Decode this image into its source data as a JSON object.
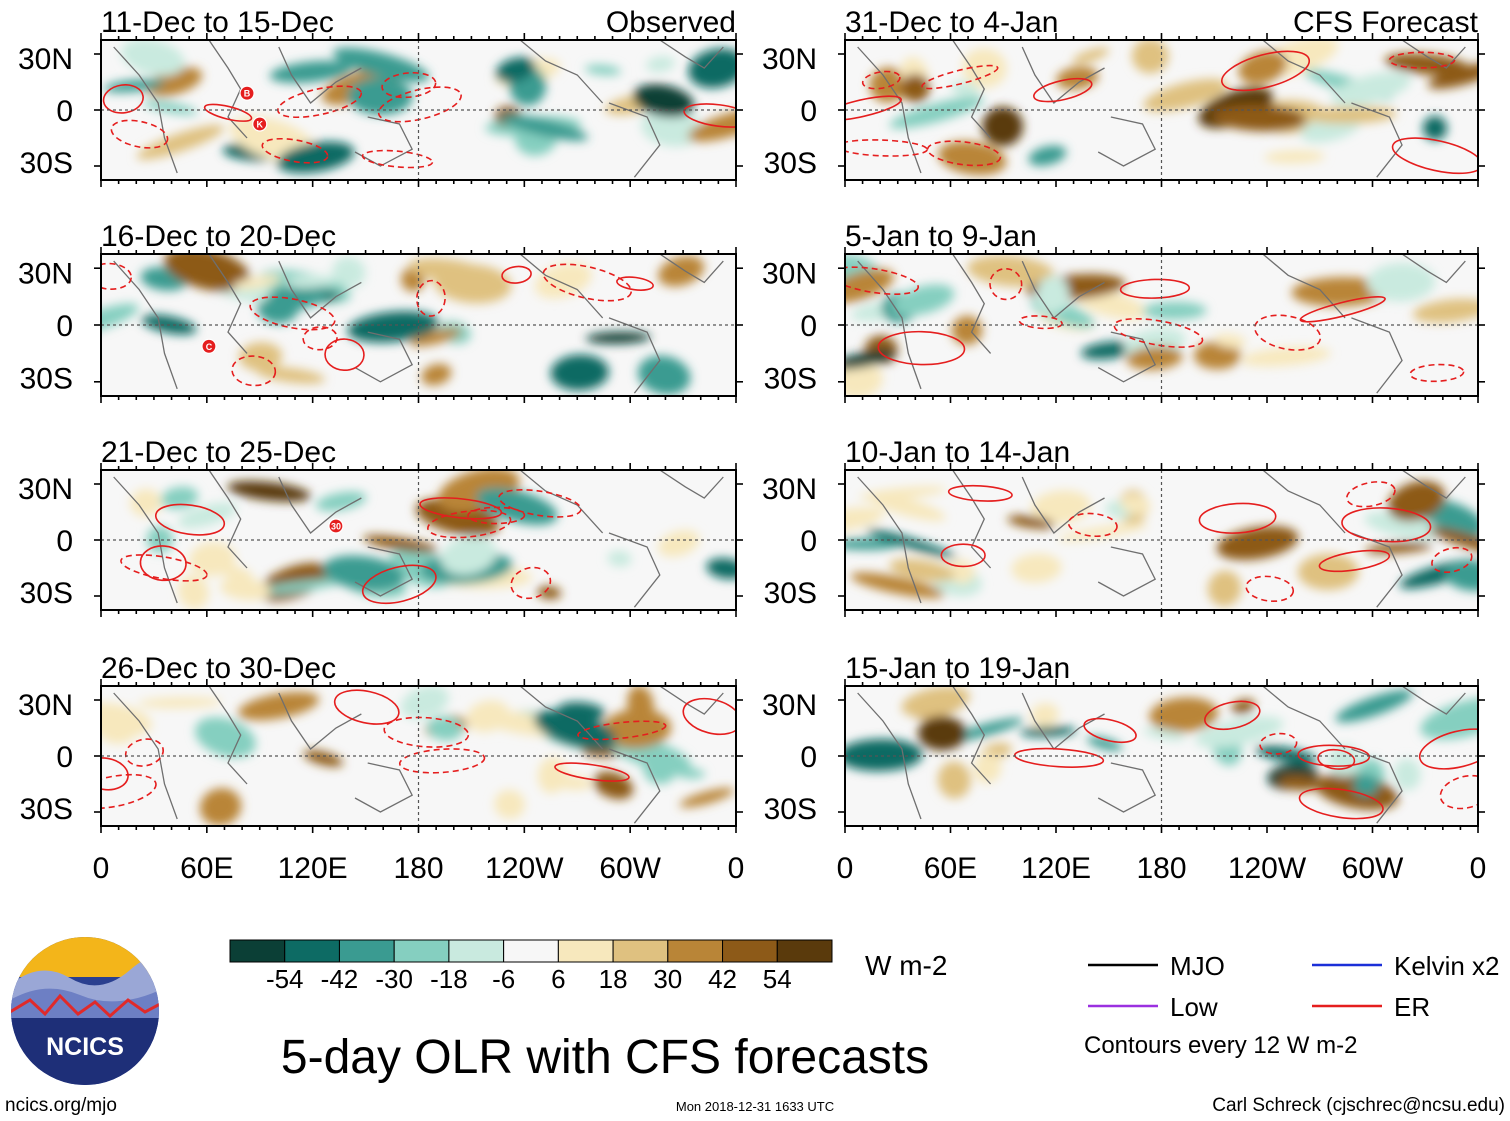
{
  "colors": {
    "colorbar": [
      "#0b3f36",
      "#0d6b64",
      "#3a9b91",
      "#85cfc0",
      "#c9eadf",
      "#f7f7f7",
      "#f7e8bd",
      "#dfc180",
      "#b98537",
      "#8d5a18",
      "#5a3a0c"
    ],
    "contour": "#e51e1e",
    "mjo": "#000000",
    "kelvin": "#1b2fd8",
    "low": "#9b30e0",
    "er": "#e51e1e",
    "grid": "#555555"
  },
  "chart_data": {
    "type": "heatmap",
    "title": "5-day OLR with CFS forecasts",
    "variable": "OLR anomaly",
    "units": "W m-2",
    "x_tick_labels": [
      "0",
      "60E",
      "120E",
      "180",
      "120W",
      "60W",
      "0"
    ],
    "y_tick_labels": [
      "30N",
      "0",
      "30S"
    ],
    "colorbar": {
      "tick_labels": [
        "-54",
        "-42",
        "-30",
        "-18",
        "-6",
        "6",
        "18",
        "30",
        "42",
        "54"
      ],
      "units_label": "W m-2"
    },
    "panels": [
      {
        "period": "11-Dec to 15-Dec",
        "tag": "Observed",
        "column": "left"
      },
      {
        "period": "16-Dec to 20-Dec",
        "tag": "",
        "column": "left"
      },
      {
        "period": "21-Dec to 25-Dec",
        "tag": "",
        "column": "left"
      },
      {
        "period": "26-Dec to 30-Dec",
        "tag": "",
        "column": "left"
      },
      {
        "period": "31-Dec to 4-Jan",
        "tag": "CFS Forecast",
        "column": "right"
      },
      {
        "period": "5-Jan to 9-Jan",
        "tag": "",
        "column": "right"
      },
      {
        "period": "10-Jan to 14-Jan",
        "tag": "",
        "column": "right"
      },
      {
        "period": "15-Jan to 19-Jan",
        "tag": "",
        "column": "right"
      }
    ],
    "storm_markers": [
      {
        "panel": 0,
        "label": "B"
      },
      {
        "panel": 0,
        "label": "K"
      },
      {
        "panel": 1,
        "label": "C"
      },
      {
        "panel": 2,
        "label": "30"
      }
    ],
    "legend": {
      "entries": [
        {
          "name": "MJO",
          "color_key": "mjo"
        },
        {
          "name": "Kelvin x2",
          "color_key": "kelvin"
        },
        {
          "name": "Low",
          "color_key": "low"
        },
        {
          "name": "ER",
          "color_key": "er"
        }
      ],
      "note": "Contours every 12 W m-2"
    }
  },
  "logo": {
    "text": "NCICS"
  },
  "footer": {
    "url": "ncics.org/mjo",
    "timestamp": "Mon 2018-12-31 1633 UTC",
    "credit": "Carl Schreck (cjschrec@ncsu.edu)"
  }
}
